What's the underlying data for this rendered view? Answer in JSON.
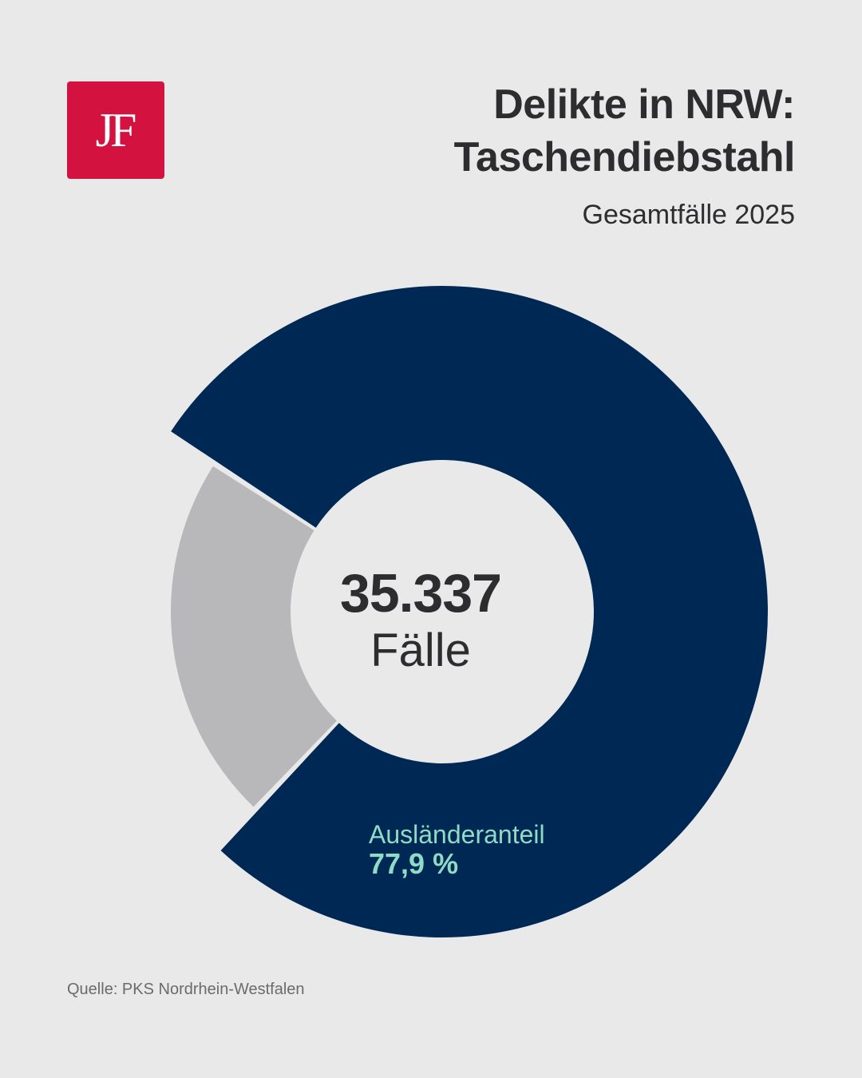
{
  "logo": {
    "text": "JF",
    "color": "#d31240"
  },
  "header": {
    "title_line1": "Delikte in NRW:",
    "title_line2": "Taschendiebstahl",
    "subtitle": "Gesamtfälle 2025"
  },
  "center": {
    "value": "35.337",
    "unit": "Fälle"
  },
  "source": "Quelle: PKS Nordrhein-Westfalen",
  "colors": {
    "background": "#e9e9e9",
    "primary": "#002855",
    "secondary": "#b8b8ba",
    "accent": "#8fdcc6",
    "text": "#2d2d30"
  },
  "chart_data": {
    "type": "pie",
    "title": "Delikte in NRW: Taschendiebstahl",
    "subtitle": "Gesamtfälle 2025",
    "total": 35337,
    "slices": [
      {
        "label": "Ausländeranteil",
        "display_value": "77,9 %",
        "value": 77.9,
        "color": "#002855"
      },
      {
        "value": 22.1,
        "color": "#b8b8ba"
      }
    ]
  }
}
